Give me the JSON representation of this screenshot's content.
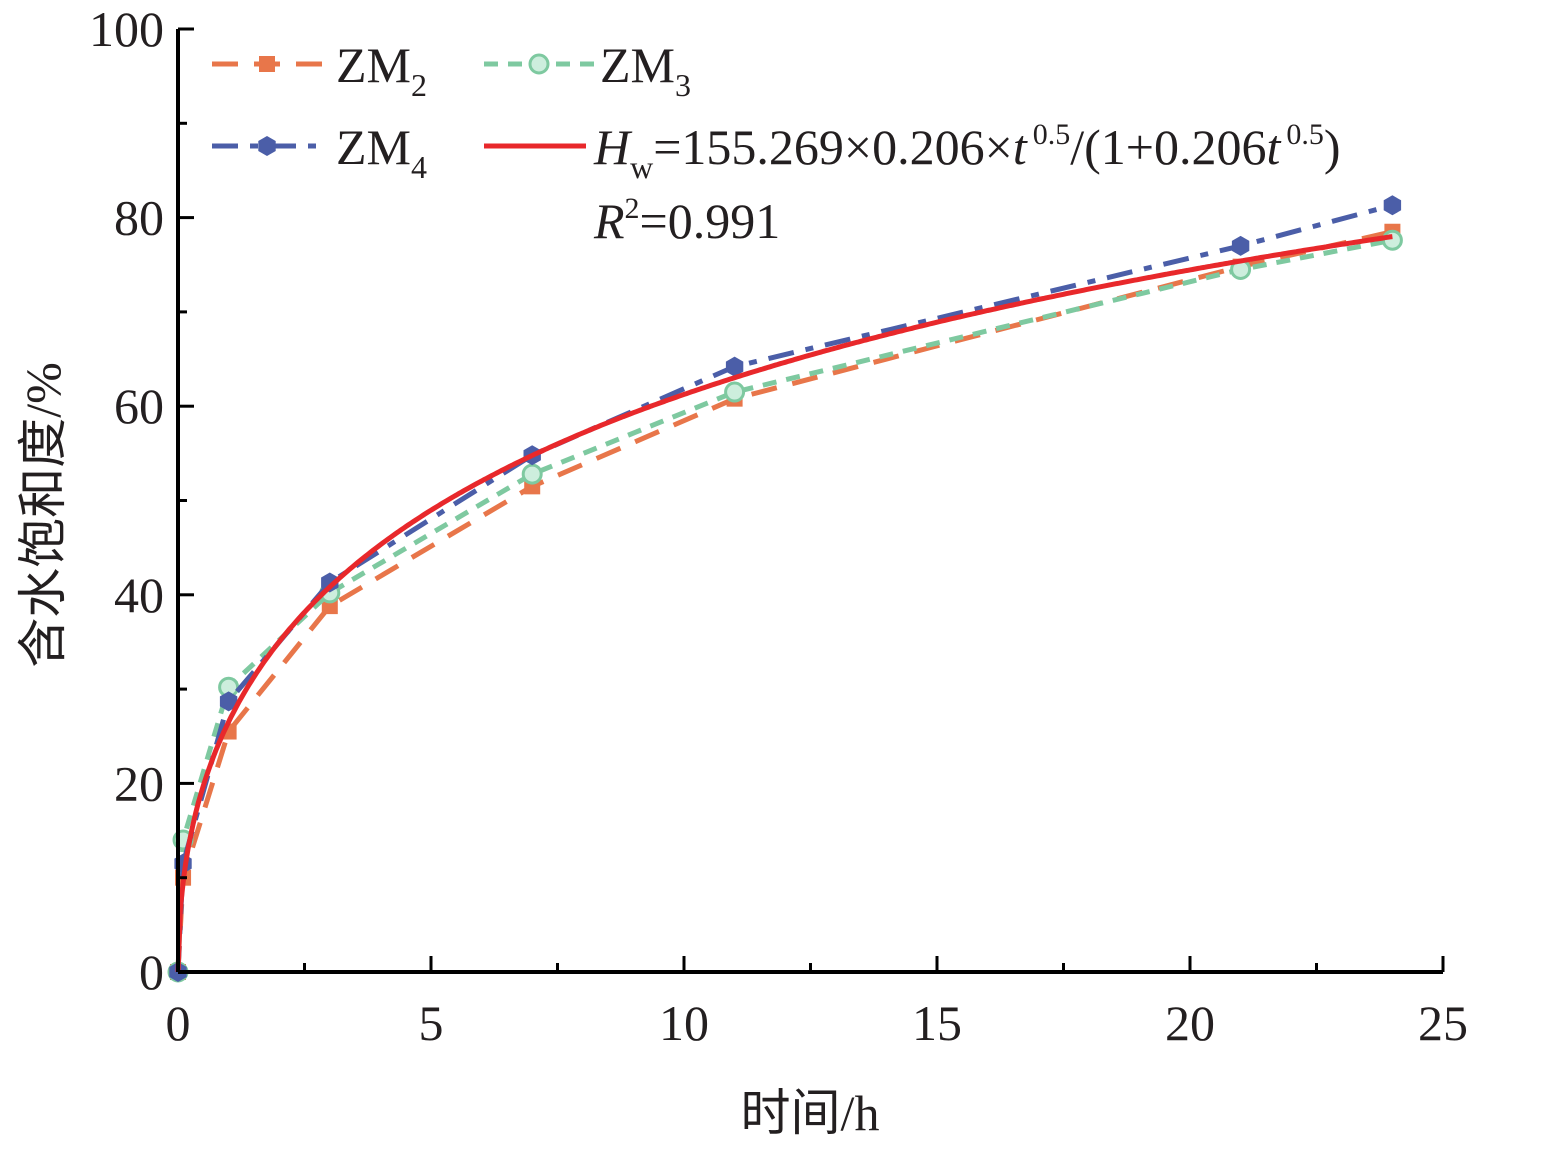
{
  "chart_data": {
    "type": "line",
    "xlabel": "时间/h",
    "ylabel": "含水饱和度/%",
    "xlim": [
      0,
      25
    ],
    "ylim": [
      0,
      100
    ],
    "xticks": [
      0,
      5,
      10,
      15,
      20,
      25
    ],
    "yticks": [
      0,
      20,
      40,
      60,
      80,
      100
    ],
    "grid": false,
    "legend_position": "top-left",
    "series": [
      {
        "name": "ZM2",
        "name_base": "ZM",
        "name_sub": "2",
        "color": "#e8764a",
        "marker": "square",
        "line": "dash",
        "x": [
          0,
          0.1,
          1,
          3,
          7,
          11,
          21,
          24
        ],
        "y": [
          0,
          10,
          25.5,
          38.8,
          51.5,
          60.8,
          74.8,
          78.5
        ]
      },
      {
        "name": "ZM3",
        "name_base": "ZM",
        "name_sub": "3",
        "color": "#7ec9a0",
        "marker": "circle",
        "line": "short-dash",
        "x": [
          0,
          0.1,
          1,
          3,
          7,
          11,
          21,
          24
        ],
        "y": [
          0,
          14,
          30.2,
          40.2,
          52.8,
          61.5,
          74.5,
          77.6
        ]
      },
      {
        "name": "ZM4",
        "name_base": "ZM",
        "name_sub": "4",
        "color": "#4b5ea8",
        "marker": "hexagon",
        "line": "dash-dot",
        "x": [
          0,
          0.1,
          1,
          3,
          7,
          11,
          21,
          24
        ],
        "y": [
          0,
          11.5,
          28.7,
          41.3,
          54.8,
          64.2,
          77,
          81.3
        ]
      }
    ],
    "fit": {
      "color": "#e8282b",
      "a": 155.269,
      "b": 0.206,
      "exponent": 0.5,
      "t_range": [
        0,
        24
      ],
      "equation": {
        "H": "H",
        "w": "w",
        "part1": "=155.269×0.206×",
        "t": "t",
        "exp1": "0.5",
        "part2": "/(1+0.206",
        "exp2": "0.5",
        "part3": ")"
      },
      "r2": {
        "R": "R",
        "two": "2",
        "value": "=0.991"
      }
    }
  }
}
